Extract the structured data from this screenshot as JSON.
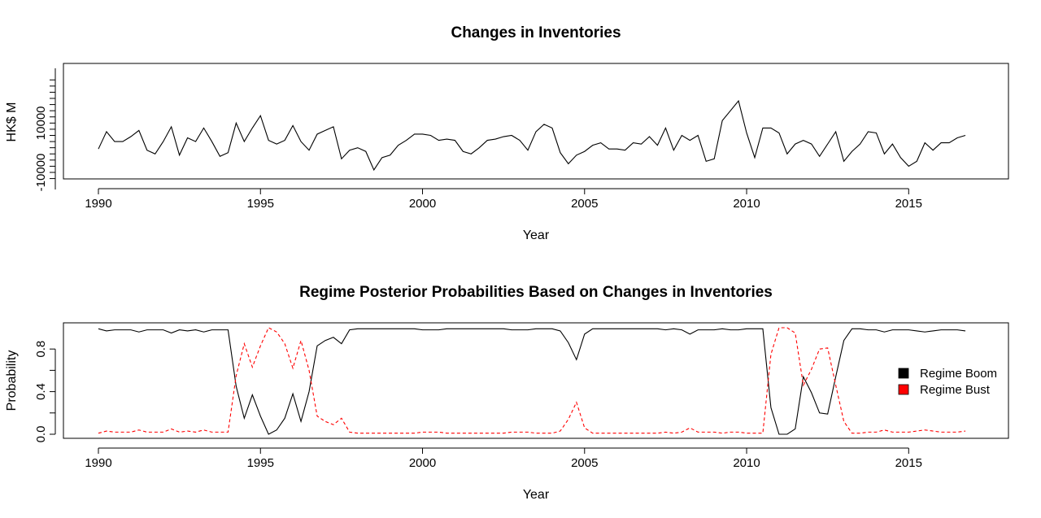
{
  "chart_data": [
    {
      "type": "line",
      "title": "Changes in Inventories",
      "xlabel": "Year",
      "ylabel": "HK$ M",
      "xlim": [
        1990,
        2017
      ],
      "ylim": [
        -10000,
        20000
      ],
      "x_ticks": [
        1990,
        1995,
        2000,
        2005,
        2010,
        2015
      ],
      "y_tick_labels": [
        "-10000",
        "10000"
      ],
      "y_tick_values": [
        -10000,
        10000
      ],
      "y_minor_ticks": [
        -12500,
        -7500,
        -2500,
        2500,
        7500,
        12500,
        17500,
        22500,
        27500
      ],
      "y_labelled_ticks_label_text": [
        "-10000",
        "10000",
        "-"
      ],
      "color": "#000000",
      "series": [
        {
          "x_start": 1990,
          "x_step": 0.25,
          "values": [
            -500,
            6500,
            2500,
            2500,
            4500,
            7000,
            -1000,
            -2500,
            2500,
            8500,
            -3000,
            4000,
            2500,
            8000,
            2500,
            -3500,
            -2000,
            10000,
            2500,
            8000,
            13000,
            3000,
            1500,
            3000,
            9000,
            2500,
            -1000,
            5500,
            7000,
            8500,
            -4500,
            -1000,
            0,
            -1500,
            -9000,
            -4000,
            -3000,
            1000,
            3000,
            5500,
            5500,
            5000,
            3000,
            3500,
            3000,
            -1500,
            -2500,
            0,
            3000,
            3500,
            4500,
            5000,
            3000,
            -1000,
            6500,
            9500,
            8000,
            -2000,
            -6500,
            -3000,
            -1500,
            1000,
            2000,
            -500,
            -500,
            -1000,
            2000,
            1500,
            4500,
            1000,
            8000,
            -1000,
            5000,
            3000,
            5000,
            -5500,
            -4500,
            11000,
            15000,
            19000,
            6000,
            -4000,
            8000,
            8000,
            6000,
            -2500,
            1500,
            3000,
            1500,
            -3500,
            1500,
            6500,
            -5500,
            -1500,
            1500,
            6500,
            6000,
            -2500,
            1500,
            -4000,
            -7500,
            -5500,
            2000,
            -1000,
            2000,
            2000,
            4000,
            5000
          ]
        }
      ]
    },
    {
      "type": "line",
      "title": "Regime Posterior Probabilities Based on Changes in Inventories",
      "xlabel": "Year",
      "ylabel": "Probability",
      "xlim": [
        1990,
        2017
      ],
      "ylim": [
        0,
        1
      ],
      "x_ticks": [
        1990,
        1995,
        2000,
        2005,
        2010,
        2015
      ],
      "y_ticks": [
        0.0,
        0.4,
        0.8
      ],
      "y_tick_labels": [
        "0.0",
        "0.4",
        "0.8"
      ],
      "legend_position": "right",
      "series": [
        {
          "name": "Regime Boom",
          "color": "#000000",
          "dash": "solid",
          "x_start": 1990,
          "x_step": 0.25,
          "values": [
            0.99,
            0.97,
            0.98,
            0.98,
            0.98,
            0.96,
            0.98,
            0.98,
            0.98,
            0.95,
            0.98,
            0.97,
            0.98,
            0.96,
            0.98,
            0.98,
            0.98,
            0.45,
            0.15,
            0.37,
            0.17,
            0.0,
            0.04,
            0.15,
            0.38,
            0.12,
            0.4,
            0.83,
            0.88,
            0.91,
            0.85,
            0.98,
            0.99,
            0.99,
            0.99,
            0.99,
            0.99,
            0.99,
            0.99,
            0.99,
            0.98,
            0.98,
            0.98,
            0.99,
            0.99,
            0.99,
            0.99,
            0.99,
            0.99,
            0.99,
            0.99,
            0.98,
            0.98,
            0.98,
            0.99,
            0.99,
            0.99,
            0.97,
            0.86,
            0.7,
            0.94,
            0.99,
            0.99,
            0.99,
            0.99,
            0.99,
            0.99,
            0.99,
            0.99,
            0.99,
            0.98,
            0.99,
            0.98,
            0.94,
            0.98,
            0.98,
            0.98,
            0.99,
            0.98,
            0.98,
            0.99,
            0.99,
            0.99,
            0.25,
            0.0,
            0.0,
            0.05,
            0.54,
            0.39,
            0.2,
            0.19,
            0.54,
            0.88,
            0.99,
            0.99,
            0.98,
            0.98,
            0.96,
            0.98,
            0.98,
            0.98,
            0.97,
            0.96,
            0.97,
            0.98,
            0.98,
            0.98,
            0.97
          ]
        },
        {
          "name": "Regime Bust",
          "color": "#ff0000",
          "dash": "dashed",
          "x_start": 1990,
          "x_step": 0.25,
          "values": [
            0.01,
            0.03,
            0.02,
            0.02,
            0.02,
            0.04,
            0.02,
            0.02,
            0.02,
            0.05,
            0.02,
            0.03,
            0.02,
            0.04,
            0.02,
            0.02,
            0.02,
            0.55,
            0.85,
            0.63,
            0.83,
            1.0,
            0.96,
            0.85,
            0.62,
            0.88,
            0.6,
            0.17,
            0.12,
            0.09,
            0.15,
            0.02,
            0.01,
            0.01,
            0.01,
            0.01,
            0.01,
            0.01,
            0.01,
            0.01,
            0.02,
            0.02,
            0.02,
            0.01,
            0.01,
            0.01,
            0.01,
            0.01,
            0.01,
            0.01,
            0.01,
            0.02,
            0.02,
            0.02,
            0.01,
            0.01,
            0.01,
            0.03,
            0.14,
            0.3,
            0.06,
            0.01,
            0.01,
            0.01,
            0.01,
            0.01,
            0.01,
            0.01,
            0.01,
            0.01,
            0.02,
            0.01,
            0.02,
            0.06,
            0.02,
            0.02,
            0.02,
            0.01,
            0.02,
            0.02,
            0.01,
            0.01,
            0.01,
            0.75,
            1.0,
            1.0,
            0.95,
            0.46,
            0.61,
            0.8,
            0.81,
            0.46,
            0.12,
            0.01,
            0.01,
            0.02,
            0.02,
            0.04,
            0.02,
            0.02,
            0.02,
            0.03,
            0.04,
            0.03,
            0.02,
            0.02,
            0.02,
            0.03
          ]
        }
      ]
    }
  ]
}
